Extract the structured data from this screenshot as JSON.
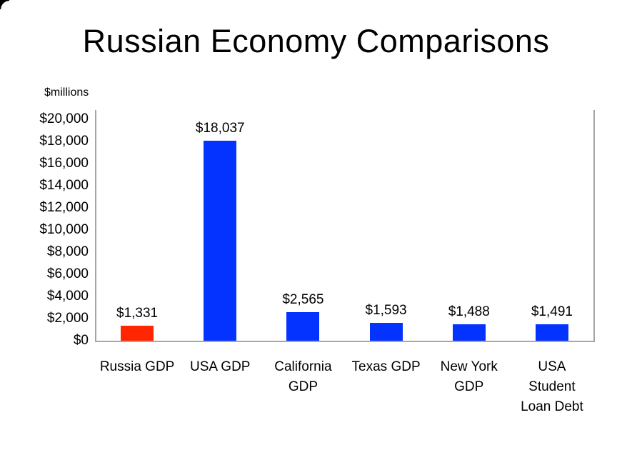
{
  "chart_data": {
    "type": "bar",
    "title": "Russian Economy Comparisons",
    "unit_label": "$millions",
    "xlabel": "",
    "ylabel": "$millions",
    "categories": [
      "Russia GDP",
      "USA GDP",
      "California\nGDP",
      "Texas GDP",
      "New York\nGDP",
      "USA\nStudent\nLoan Debt"
    ],
    "values": [
      1331,
      18037,
      2565,
      1593,
      1488,
      1491
    ],
    "value_labels": [
      "$1,331",
      "$18,037",
      "$2,565",
      "$1,593",
      "$1,488",
      "$1,491"
    ],
    "bar_colors": [
      "#ff2600",
      "#0433ff",
      "#0433ff",
      "#0433ff",
      "#0433ff",
      "#0433ff"
    ],
    "y_ticks": [
      "$0",
      "$2,000",
      "$4,000",
      "$6,000",
      "$8,000",
      "$10,000",
      "$12,000",
      "$14,000",
      "$16,000",
      "$18,000",
      "$20,000"
    ],
    "y_tick_values": [
      0,
      2000,
      4000,
      6000,
      8000,
      10000,
      12000,
      14000,
      16000,
      18000,
      20000
    ],
    "ylim": [
      0,
      20000
    ],
    "grid": false,
    "legend": false,
    "colors": {
      "highlight_bar": "#ff2600",
      "default_bar": "#0433ff",
      "axis": "#a6a6a6",
      "text": "#000000",
      "background": "#ffffff"
    }
  }
}
